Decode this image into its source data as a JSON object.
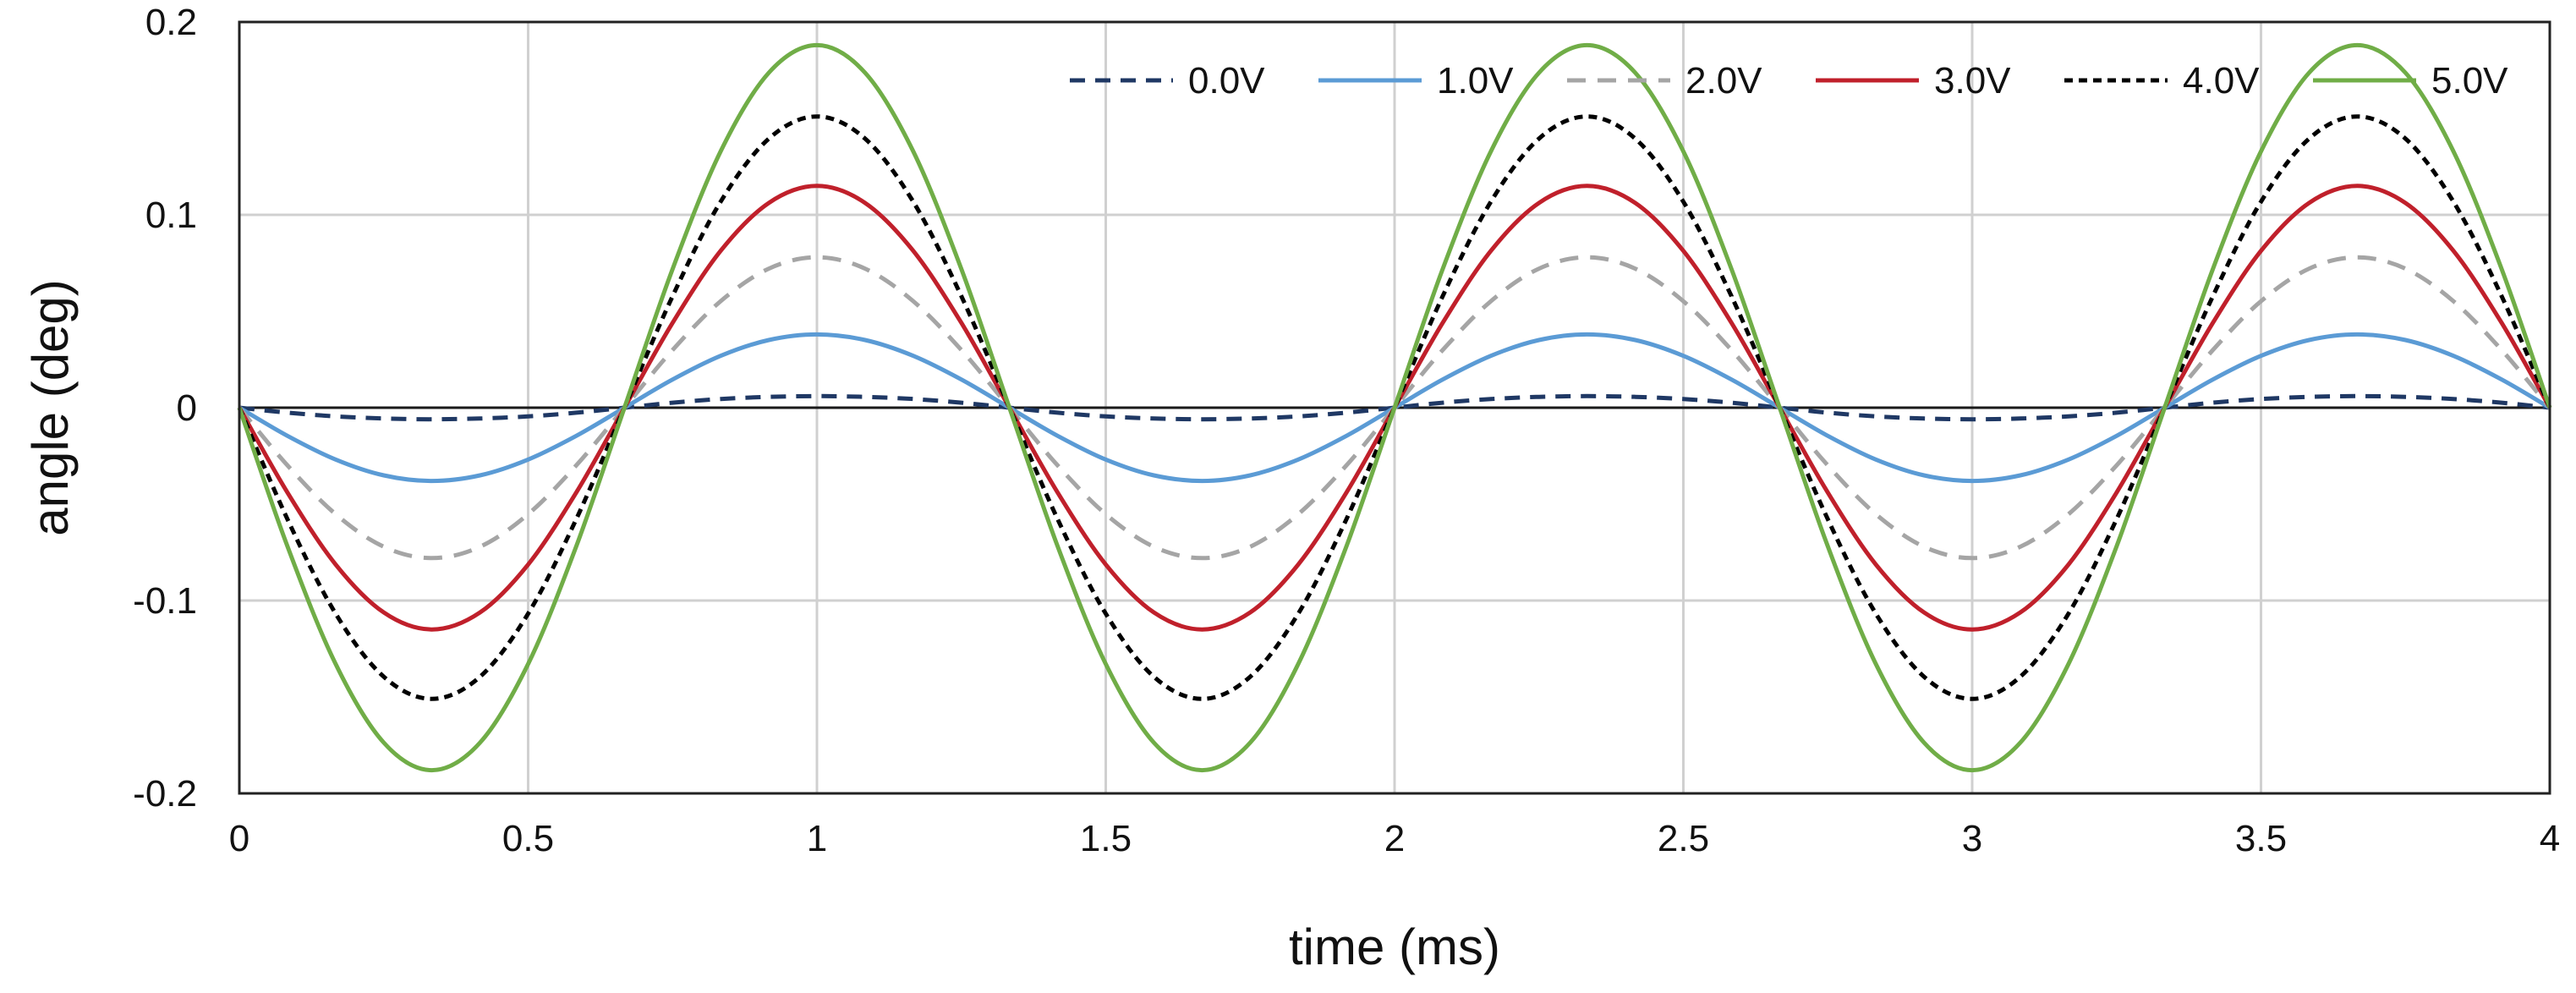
{
  "chart_data": {
    "type": "line",
    "title": "",
    "xlabel": "time (ms)",
    "ylabel": "angle (deg)",
    "xlim": [
      0,
      4
    ],
    "ylim": [
      -0.2,
      0.2
    ],
    "grid": true,
    "legend_position": "top-right",
    "x_ticks": [
      {
        "value": 0,
        "label": "0"
      },
      {
        "value": 0.5,
        "label": "0.5"
      },
      {
        "value": 1,
        "label": "1"
      },
      {
        "value": 1.5,
        "label": "1.5"
      },
      {
        "value": 2,
        "label": "2"
      },
      {
        "value": 2.5,
        "label": "2.5"
      },
      {
        "value": 3,
        "label": "3"
      },
      {
        "value": 3.5,
        "label": "3.5"
      },
      {
        "value": 4,
        "label": "4"
      }
    ],
    "y_ticks": [
      {
        "value": 0.2,
        "label": "0.2"
      },
      {
        "value": 0.1,
        "label": "0.1"
      },
      {
        "value": 0,
        "label": "0"
      },
      {
        "value": -0.1,
        "label": "-0.1"
      },
      {
        "value": -0.2,
        "label": "-0.2"
      }
    ],
    "x": [
      0,
      0.0833,
      0.1667,
      0.25,
      0.3333,
      0.4167,
      0.5,
      0.5833,
      0.6667,
      0.75,
      0.8333,
      0.9167,
      1,
      1.0833,
      1.1667,
      1.25,
      1.3333,
      1.4167,
      1.5,
      1.5833,
      1.6667,
      1.75,
      1.8333,
      1.9167,
      2,
      2.0833,
      2.1667,
      2.25,
      2.3333,
      2.4167,
      2.5,
      2.5833,
      2.6667,
      2.75,
      2.8333,
      2.9167,
      3,
      3.0833,
      3.1667,
      3.25,
      3.3333,
      3.4167,
      3.5,
      3.5833,
      3.6667,
      3.75,
      3.8333,
      3.9167,
      4
    ],
    "series": [
      {
        "name": "0.0V",
        "color": "#1f3864",
        "dash": "18,12",
        "values": [
          0,
          -0.0026,
          -0.0045,
          -0.0056,
          -0.006,
          -0.0056,
          -0.0045,
          -0.0026,
          0,
          0.0026,
          0.0045,
          0.0056,
          0.006,
          0.0056,
          0.0045,
          0.0026,
          0,
          -0.0026,
          -0.0045,
          -0.0056,
          -0.006,
          -0.0056,
          -0.0045,
          -0.0026,
          0,
          0.0026,
          0.0045,
          0.0056,
          0.006,
          0.0056,
          0.0045,
          0.0026,
          0,
          -0.0026,
          -0.0045,
          -0.0056,
          -0.006,
          -0.0056,
          -0.0045,
          -0.0026,
          0,
          0.0026,
          0.0045,
          0.0056,
          0.006,
          0.0056,
          0.0045,
          0.0026,
          0
        ]
      },
      {
        "name": "1.0V",
        "color": "#5b9bd5",
        "dash": "",
        "values": [
          0,
          -0.0146,
          -0.0269,
          -0.0351,
          -0.038,
          -0.0351,
          -0.0269,
          -0.0146,
          0,
          0.0146,
          0.0269,
          0.0351,
          0.038,
          0.0351,
          0.0269,
          0.0146,
          0,
          -0.0146,
          -0.0269,
          -0.0351,
          -0.038,
          -0.0351,
          -0.0269,
          -0.0146,
          0,
          0.0146,
          0.0269,
          0.0351,
          0.038,
          0.0351,
          0.0269,
          0.0146,
          0,
          -0.0146,
          -0.0269,
          -0.0351,
          -0.038,
          -0.0351,
          -0.0269,
          -0.0146,
          0,
          0.0146,
          0.0269,
          0.0351,
          0.038,
          0.0351,
          0.0269,
          0.0146,
          0
        ]
      },
      {
        "name": "2.0V",
        "color": "#a5a5a5",
        "dash": "22,14",
        "values": [
          0,
          -0.0299,
          -0.0552,
          -0.0721,
          -0.078,
          -0.0721,
          -0.0552,
          -0.0299,
          0,
          0.0299,
          0.0552,
          0.0721,
          0.078,
          0.0721,
          0.0552,
          0.0299,
          0,
          -0.0299,
          -0.0552,
          -0.0721,
          -0.078,
          -0.0721,
          -0.0552,
          -0.0299,
          0,
          0.0299,
          0.0552,
          0.0721,
          0.078,
          0.0721,
          0.0552,
          0.0299,
          0,
          -0.0299,
          -0.0552,
          -0.0721,
          -0.078,
          -0.0721,
          -0.0552,
          -0.0299,
          0,
          0.0299,
          0.0552,
          0.0721,
          0.078,
          0.0721,
          0.0552,
          0.0299,
          0
        ]
      },
      {
        "name": "3.0V",
        "color": "#c0202b",
        "dash": "",
        "values": [
          0,
          -0.044,
          -0.0813,
          -0.1062,
          -0.115,
          -0.1062,
          -0.0813,
          -0.044,
          0,
          0.044,
          0.0813,
          0.1062,
          0.115,
          0.1062,
          0.0813,
          0.044,
          0,
          -0.044,
          -0.0813,
          -0.1062,
          -0.115,
          -0.1062,
          -0.0813,
          -0.044,
          0,
          0.044,
          0.0813,
          0.1062,
          0.115,
          0.1062,
          0.0813,
          0.044,
          0,
          -0.044,
          -0.0813,
          -0.1062,
          -0.115,
          -0.1062,
          -0.0813,
          -0.044,
          0,
          0.044,
          0.0813,
          0.1062,
          0.115,
          0.1062,
          0.0813,
          0.044,
          0
        ]
      },
      {
        "name": "4.0V",
        "color": "#000000",
        "dash": "10,7",
        "values": [
          0,
          -0.0578,
          -0.1068,
          -0.1395,
          -0.151,
          -0.1395,
          -0.1068,
          -0.0578,
          0,
          0.0578,
          0.1068,
          0.1395,
          0.151,
          0.1395,
          0.1068,
          0.0578,
          0,
          -0.0578,
          -0.1068,
          -0.1395,
          -0.151,
          -0.1395,
          -0.1068,
          -0.0578,
          0,
          0.0578,
          0.1068,
          0.1395,
          0.151,
          0.1395,
          0.1068,
          0.0578,
          0,
          -0.0578,
          -0.1068,
          -0.1395,
          -0.151,
          -0.1395,
          -0.1068,
          -0.0578,
          0,
          0.0578,
          0.1068,
          0.1395,
          0.151,
          0.1395,
          0.1068,
          0.0578,
          0
        ]
      },
      {
        "name": "5.0V",
        "color": "#70ad47",
        "dash": "",
        "values": [
          0,
          -0.0719,
          -0.1329,
          -0.1737,
          -0.188,
          -0.1737,
          -0.1329,
          -0.0719,
          0,
          0.0719,
          0.1329,
          0.1737,
          0.188,
          0.1737,
          0.1329,
          0.0719,
          0,
          -0.0719,
          -0.1329,
          -0.1737,
          -0.188,
          -0.1737,
          -0.1329,
          -0.0719,
          0,
          0.0719,
          0.1329,
          0.1737,
          0.188,
          0.1737,
          0.1329,
          0.0719,
          0,
          -0.0719,
          -0.1329,
          -0.1737,
          -0.188,
          -0.1737,
          -0.1329,
          -0.0719,
          0,
          0.0719,
          0.1329,
          0.1737,
          0.188,
          0.1737,
          0.1329,
          0.0719,
          0
        ]
      }
    ]
  }
}
